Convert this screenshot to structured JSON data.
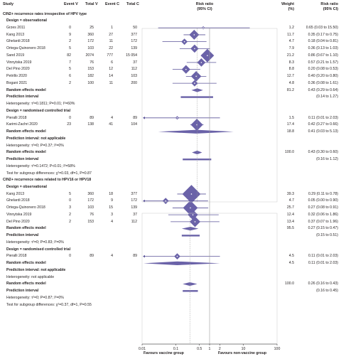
{
  "headers": {
    "study": "Study",
    "event_v": "Event V",
    "total_v": "Total V",
    "event_c": "Event C",
    "total_c": "Total C",
    "risk_ratio": "Risk ratio",
    "risk_ratio_ci": "(95% CI)",
    "weight": "Weight",
    "weight_unit": "(%)",
    "rr_col": "Risk ratio",
    "rr_col_ci": "(95% CI)"
  },
  "rows": [
    {
      "kind": "section",
      "text": "CIN2+ recurrence rates irrespective of HPV type"
    },
    {
      "kind": "design",
      "text": "Design = observational"
    },
    {
      "kind": "study",
      "study": "Grzes 2011",
      "ev": "0",
      "tv": "25",
      "ec": "1",
      "tc": "50",
      "w": "1.2",
      "ci": "0.65 (0.03 to 15.50)",
      "rr": 0.65,
      "lo": 0.03,
      "hi": 15.5
    },
    {
      "kind": "study",
      "study": "Kang 2013",
      "ev": "9",
      "tv": "360",
      "ec": "27",
      "tc": "377",
      "w": "11.7",
      "ci": "0.35 (0.17 to 0.75)",
      "rr": 0.35,
      "lo": 0.17,
      "hi": 0.75
    },
    {
      "kind": "study",
      "study": "Ghelardi 2018",
      "ev": "2",
      "tv": "172",
      "ec": "11",
      "tc": "172",
      "w": "4.7",
      "ci": "0.18 (0.04 to 0.81)",
      "rr": 0.18,
      "lo": 0.04,
      "hi": 0.81
    },
    {
      "kind": "study",
      "study": "Ortega-Quinonero 2018",
      "ev": "5",
      "tv": "103",
      "ec": "22",
      "tc": "139",
      "w": "7.9",
      "ci": "0.36 (0.13 to 1.03)",
      "rr": 0.36,
      "lo": 0.13,
      "hi": 1.03
    },
    {
      "kind": "study",
      "study": "Sand 2019",
      "ev": "82",
      "tv": "2074",
      "ec": "777",
      "tc": "15 054",
      "w": "21.2",
      "ci": "0.86 (0.67 to 1.10)",
      "rr": 0.86,
      "lo": 0.67,
      "hi": 1.1
    },
    {
      "kind": "study",
      "study": "Vinnytska 2019",
      "ev": "7",
      "tv": "76",
      "ec": "6",
      "tc": "37",
      "w": "8.3",
      "ci": "0.57 (0.21 to 1.57)",
      "rr": 0.57,
      "lo": 0.21,
      "hi": 1.57
    },
    {
      "kind": "study",
      "study": "Del Pino 2020",
      "ev": "5",
      "tv": "153",
      "ec": "12",
      "tc": "112",
      "w": "8.8",
      "ci": "0.20 (0.08 to 0.53)",
      "rr": 0.2,
      "lo": 0.08,
      "hi": 0.53
    },
    {
      "kind": "study",
      "study": "Petrillo 2020",
      "ev": "6",
      "tv": "182",
      "ec": "14",
      "tc": "103",
      "w": "12.7",
      "ci": "0.40 (0.20 to 0.80)",
      "rr": 0.4,
      "lo": 0.2,
      "hi": 0.8
    },
    {
      "kind": "study",
      "study": "Bogani 2021",
      "ev": "2",
      "tv": "100",
      "ec": "11",
      "tc": "200",
      "w": "4.8",
      "ci": "0.36 (0.08 to 1.61)",
      "rr": 0.36,
      "lo": 0.08,
      "hi": 1.61
    },
    {
      "kind": "rem",
      "text": "Random effects model",
      "w": "81.2",
      "ci": "0.43 (0.29 to 0.64)",
      "rr": 0.43,
      "lo": 0.29,
      "hi": 0.64
    },
    {
      "kind": "pi",
      "text": "Prediction interval",
      "ci": "(0.14 to 1.27)",
      "lo": 0.14,
      "hi": 1.27
    },
    {
      "kind": "het",
      "text": "Heterogeneity: τ²=0.1811; P=0.01; I²=60%"
    },
    {
      "kind": "design",
      "text": "Design = randomised controlled trial"
    },
    {
      "kind": "study",
      "study": "Pieralli 2018",
      "ev": "0",
      "tv": "89",
      "ec": "4",
      "tc": "89",
      "w": "1.5",
      "ci": "0.11 (0.01 to 2.03)",
      "rr": 0.11,
      "lo": 0.01,
      "hi": 2.03,
      "arrow_lo": true
    },
    {
      "kind": "study",
      "study": "Karimi-Zachri 2020",
      "ev": "23",
      "tv": "138",
      "ec": "41",
      "tc": "104",
      "w": "17.4",
      "ci": "0.42 (0.27 to 0.66)",
      "rr": 0.42,
      "lo": 0.27,
      "hi": 0.66
    },
    {
      "kind": "rem",
      "text": "Random effects model",
      "w": "18.8",
      "ci": "0.41 (0.03 to 5.13)",
      "rr": 0.41,
      "lo": 0.03,
      "hi": 5.13
    },
    {
      "kind": "design",
      "text": "Prediction interval: not applicable"
    },
    {
      "kind": "het",
      "text": "Heterogeneity: τ²=0; P=0.37; I²=0%"
    },
    {
      "kind": "rem",
      "text": "Random effects model",
      "w": "100.0",
      "ci": "0.43 (0.30 to 0.60)",
      "rr": 0.43,
      "lo": 0.3,
      "hi": 0.6
    },
    {
      "kind": "pi",
      "text": "Prediction interval",
      "ci": "(0.16 to 1.12)",
      "lo": 0.16,
      "hi": 1.12
    },
    {
      "kind": "het",
      "text": "Heterogeneity: τ²=0.1472; P<0.01; I²=58%"
    },
    {
      "kind": "het",
      "text": "Test for subgroup differences: χ²=0.03, df=1, P=0.87"
    },
    {
      "kind": "section",
      "text": "CIN2+ recurrence rates related to HPV16 or HPV18"
    },
    {
      "kind": "design",
      "text": "Design = observational"
    },
    {
      "kind": "study",
      "study": "Kang 2013",
      "ev": "5",
      "tv": "360",
      "ec": "18",
      "tc": "377",
      "w": "39.3",
      "ci": "0.29 (0.11 to 0.78)",
      "rr": 0.29,
      "lo": 0.11,
      "hi": 0.78
    },
    {
      "kind": "study",
      "study": "Ghelardi 2018",
      "ev": "0",
      "tv": "172",
      "ec": "9",
      "tc": "172",
      "w": "4.7",
      "ci": "0.05 (0.00 to 0.90)",
      "rr": 0.05,
      "lo": 0.0,
      "hi": 0.9,
      "arrow_lo": true
    },
    {
      "kind": "study",
      "study": "Ortega-Quinonero 2018",
      "ev": "3",
      "tv": "103",
      "ec": "15",
      "tc": "139",
      "w": "25.7",
      "ci": "0.27 (0.08 to 0.91)",
      "rr": 0.27,
      "lo": 0.08,
      "hi": 0.91
    },
    {
      "kind": "study",
      "study": "Vinnytska 2019",
      "ev": "2",
      "tv": "76",
      "ec": "3",
      "tc": "37",
      "w": "12.4",
      "ci": "0.32 (0.06 to 1.86)",
      "rr": 0.32,
      "lo": 0.06,
      "hi": 1.86
    },
    {
      "kind": "study",
      "study": "Del Pino 2020",
      "ev": "2",
      "tv": "153",
      "ec": "4",
      "tc": "112",
      "w": "13.4",
      "ci": "0.37 (0.07 to 1.96)",
      "rr": 0.37,
      "lo": 0.07,
      "hi": 1.96
    },
    {
      "kind": "rem",
      "text": "Random effects model",
      "w": "95.5",
      "ci": "0.27 (0.15 to 0.47)",
      "rr": 0.27,
      "lo": 0.15,
      "hi": 0.47
    },
    {
      "kind": "pi",
      "text": "Prediction interval",
      "ci": "(0.15 to 0.51)",
      "lo": 0.15,
      "hi": 0.51
    },
    {
      "kind": "het",
      "text": "Heterogeneity: τ²=0; P=0.83; I²=0%"
    },
    {
      "kind": "design",
      "text": "Design = randomised controlled trial"
    },
    {
      "kind": "study",
      "study": "Pieralli 2018",
      "ev": "0",
      "tv": "89",
      "ec": "4",
      "tc": "89",
      "w": "4.5",
      "ci": "0.11 (0.01 to 2.03)",
      "rr": 0.11,
      "lo": 0.01,
      "hi": 2.03,
      "arrow_lo": true
    },
    {
      "kind": "rem",
      "text": "Random effects model",
      "w": "4.5",
      "ci": "0.11 (0.01 to 2.03)",
      "rr": 0.11,
      "lo": 0.01,
      "hi": 2.03,
      "arrow_lo": true
    },
    {
      "kind": "design",
      "text": "Prediction interval: not applicable"
    },
    {
      "kind": "het",
      "text": "Heterogeneity: not applicable"
    },
    {
      "kind": "rem",
      "text": "Random effects model",
      "w": "100.0",
      "ci": "0.26 (0.16 to 0.43)",
      "rr": 0.26,
      "lo": 0.16,
      "hi": 0.43
    },
    {
      "kind": "pi",
      "text": "Prediction interval",
      "ci": "(0.16 to 0.45)",
      "lo": 0.16,
      "hi": 0.45
    },
    {
      "kind": "het",
      "text": "Heterogeneity: τ²=0; P=0.87; I²=0%"
    },
    {
      "kind": "het",
      "text": "Test for subgroup differences: χ²=0.37, df=1, P=0.55"
    }
  ],
  "chart_data": {
    "type": "forest",
    "xscale": "log",
    "xlim": [
      0.01,
      100
    ],
    "ticks": [
      "0.01",
      "0.1",
      "0.5",
      "1",
      "2",
      "10",
      "100"
    ],
    "tick_values": [
      0.01,
      0.1,
      0.5,
      1,
      2,
      10,
      100
    ],
    "reference_line": 1,
    "dashed_lines": [
      0.43,
      0.26
    ],
    "favours_left": "Favours vaccine group",
    "favours_right": "Favours non-vaccine group",
    "colors": {
      "marker": "#6a62a8",
      "line": "#5b5499",
      "text": "#231f20",
      "ref": "#9a9a9a"
    }
  }
}
